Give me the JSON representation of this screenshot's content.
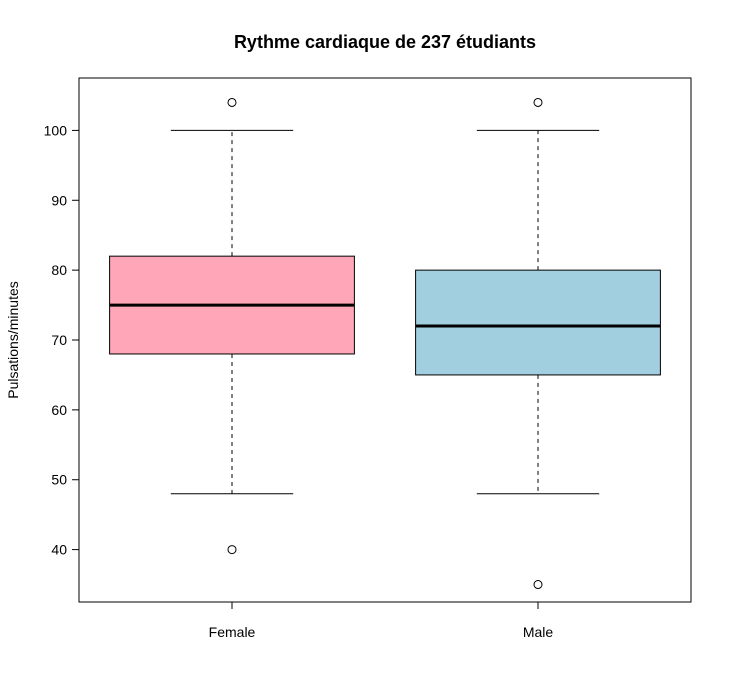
{
  "chart_data": {
    "type": "boxplot",
    "title": "Rythme cardiaque de 237 étudiants",
    "xlabel": "",
    "ylabel": "Pulsations/minutes",
    "ylim": [
      32.5,
      107.5
    ],
    "yticks": [
      40,
      50,
      60,
      70,
      80,
      90,
      100
    ],
    "categories": [
      "Female",
      "Male"
    ],
    "boxes": [
      {
        "name": "Female",
        "whisker_low": 48,
        "q1": 68,
        "median": 75,
        "q3": 82,
        "whisker_high": 100,
        "outliers": [
          40,
          104
        ],
        "color": "#FFA6B8"
      },
      {
        "name": "Male",
        "whisker_low": 48,
        "q1": 65,
        "median": 72,
        "q3": 80,
        "whisker_high": 100,
        "outliers": [
          35,
          104
        ],
        "color": "#A2CFE0"
      }
    ],
    "grid": false,
    "legend": "none"
  }
}
